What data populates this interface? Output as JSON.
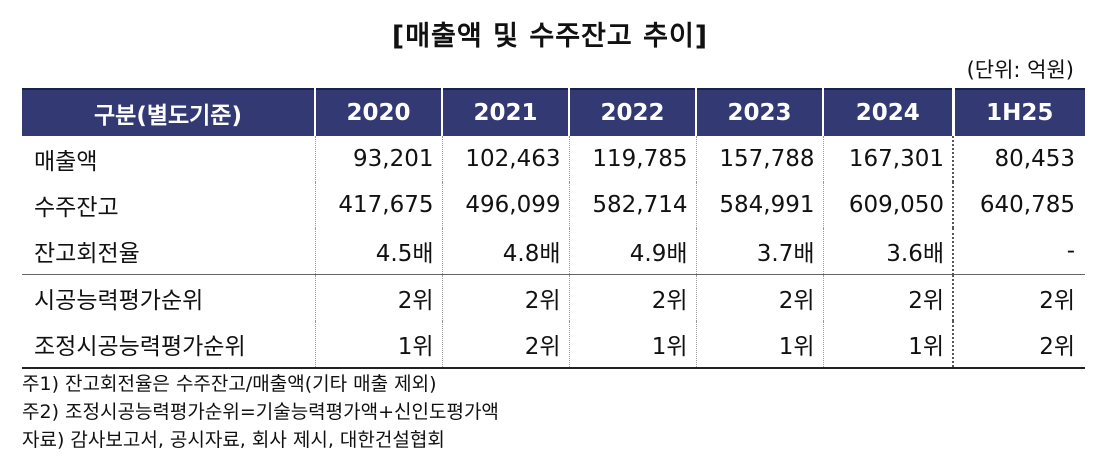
{
  "title": "[매출액 및 수주잔고 추이]",
  "unit": "(단위: 억원)",
  "table": {
    "headers": [
      "구분(별도기준)",
      "2020",
      "2021",
      "2022",
      "2023",
      "2024",
      "1H25"
    ],
    "rows": [
      {
        "label": "매출액",
        "values": [
          "93,201",
          "102,463",
          "119,785",
          "157,788",
          "167,301",
          "80,453"
        ]
      },
      {
        "label": "수주잔고",
        "values": [
          "417,675",
          "496,099",
          "582,714",
          "584,991",
          "609,050",
          "640,785"
        ]
      },
      {
        "label": "잔고회전율",
        "values": [
          "4.5배",
          "4.8배",
          "4.9배",
          "3.7배",
          "3.6배",
          "-"
        ]
      },
      {
        "label": "시공능력평가순위",
        "values": [
          "2위",
          "2위",
          "2위",
          "2위",
          "2위",
          "2위"
        ]
      },
      {
        "label": "조정시공능력평가순위",
        "values": [
          "1위",
          "2위",
          "1위",
          "1위",
          "1위",
          "2위"
        ]
      }
    ]
  },
  "notes": [
    "주1) 잔고회전율은 수주잔고/매출액(기타 매출 제외)",
    "주2) 조정시공능력평가순위=기술능력평가액+신인도평가액",
    "자료) 감사보고서, 공시자료, 회사 제시, 대한건설협회"
  ]
}
